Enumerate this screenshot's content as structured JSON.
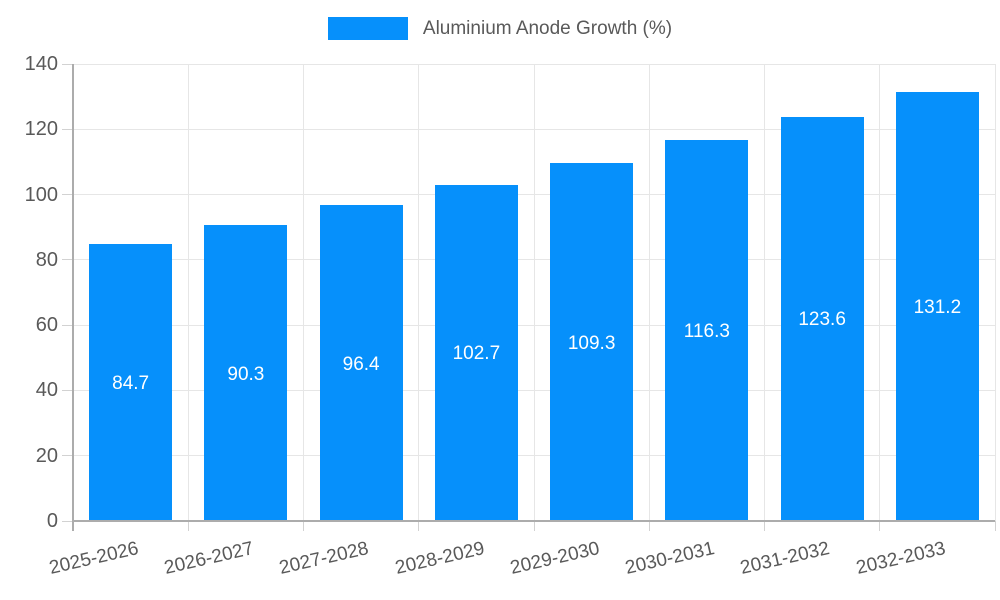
{
  "chart_data": {
    "type": "bar",
    "title": "",
    "legend": {
      "label": "Aluminium Anode Growth (%)",
      "position": "top"
    },
    "categories": [
      "2025-2026",
      "2026-2027",
      "2027-2028",
      "2028-2029",
      "2029-2030",
      "2030-2031",
      "2031-2032",
      "2032-2033"
    ],
    "series": [
      {
        "name": "Aluminium Anode Growth (%)",
        "values": [
          84.7,
          90.3,
          96.4,
          102.7,
          109.3,
          116.3,
          123.6,
          131.2
        ]
      }
    ],
    "data_labels": [
      "84.7",
      "90.3",
      "96.4",
      "102.7",
      "109.3",
      "116.3",
      "123.6",
      "131.2"
    ],
    "xlabel": "",
    "ylabel": "",
    "ylim": [
      0,
      140
    ],
    "ytick_step": 20,
    "ytick_labels": [
      "0",
      "20",
      "40",
      "60",
      "80",
      "100",
      "120",
      "140"
    ],
    "grid": true,
    "colors": {
      "bar": "#0690FB",
      "grid": "#e6e6e6",
      "axis_border": "#acacac",
      "tick_text": "#595959",
      "data_label_text": "#ffffff",
      "background": "#ffffff"
    }
  }
}
